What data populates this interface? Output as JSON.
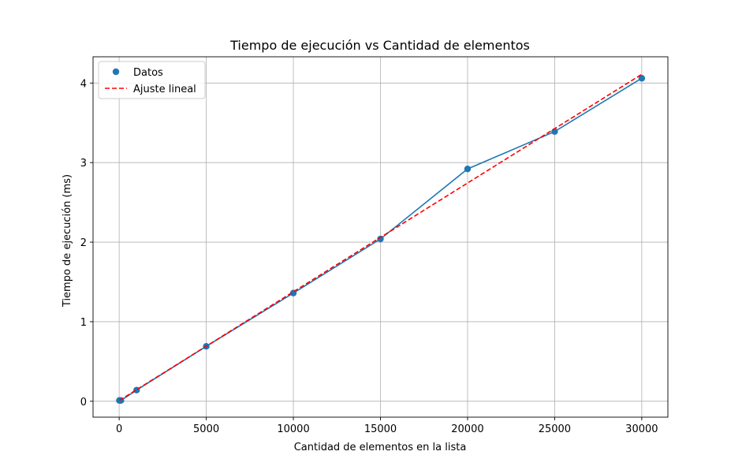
{
  "chart_data": {
    "type": "line",
    "title": "Tiempo de ejecución vs Cantidad de elementos",
    "xlabel": "Cantidad de elementos en la lista",
    "ylabel": "Tiempo de ejecución (ms)",
    "xlim": [
      -1500,
      31500
    ],
    "ylim": [
      -0.2,
      4.33
    ],
    "xticks": [
      0,
      5000,
      10000,
      15000,
      20000,
      25000,
      30000
    ],
    "xtick_labels": [
      "0",
      "5000",
      "10000",
      "15000",
      "20000",
      "25000",
      "30000"
    ],
    "yticks": [
      0,
      1,
      2,
      3,
      4
    ],
    "ytick_labels": [
      "0",
      "1",
      "2",
      "3",
      "4"
    ],
    "grid": true,
    "legend_position": "top-left",
    "series": [
      {
        "name": "Datos",
        "kind": "scatter+line",
        "color": "#1f77b4",
        "x": [
          10,
          100,
          1000,
          5000,
          10000,
          15000,
          20000,
          25000,
          30000
        ],
        "y": [
          0.01,
          0.01,
          0.14,
          0.69,
          1.36,
          2.04,
          2.92,
          3.39,
          4.06
        ]
      },
      {
        "name": "Ajuste lineal",
        "kind": "line",
        "style": "dashed",
        "color": "#ff0000",
        "x": [
          10,
          30000
        ],
        "y": [
          0.01,
          4.11
        ]
      }
    ]
  }
}
